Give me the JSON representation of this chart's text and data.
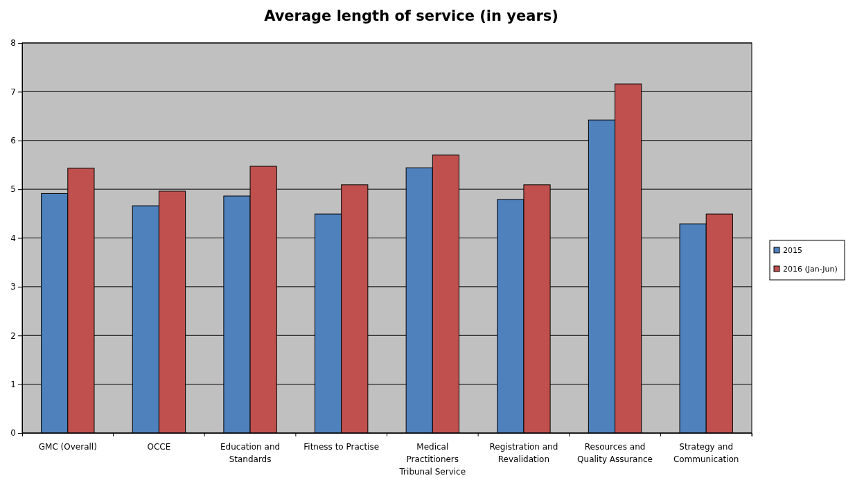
{
  "chart_data": {
    "type": "bar",
    "title": "Average length of service (in years)",
    "categories": [
      "GMC (Overall)",
      "OCCE",
      "Education and Standards",
      "Fitness to Practise",
      "Medical Practitioners Tribunal Service",
      "Registration and Revalidation",
      "Resources and Quality Assurance",
      "Strategy and Communication"
    ],
    "series": [
      {
        "name": "2015",
        "color": "#4f81bd",
        "values": [
          4.91,
          4.66,
          4.86,
          4.49,
          5.44,
          4.79,
          6.42,
          4.29
        ]
      },
      {
        "name": "2016 (Jan-Jun)",
        "color": "#c0504d",
        "values": [
          5.43,
          4.96,
          5.47,
          5.09,
          5.7,
          5.09,
          7.16,
          4.49
        ]
      }
    ],
    "ylim": [
      0,
      8
    ],
    "yticks": [
      0,
      1,
      2,
      3,
      4,
      5,
      6,
      7,
      8
    ],
    "grid": "y",
    "legend": "right"
  }
}
